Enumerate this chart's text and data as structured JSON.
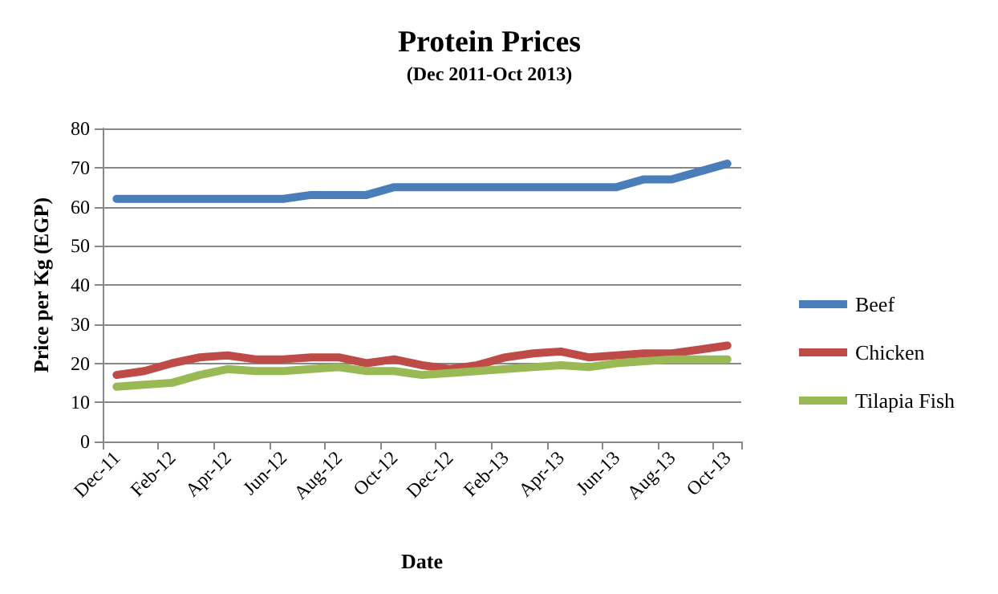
{
  "chart_data": {
    "type": "line",
    "title": "Protein Prices",
    "subtitle": "(Dec 2011-Oct 2013)",
    "xlabel": "Date",
    "ylabel": "Price per Kg (EGP)",
    "categories": [
      "Dec-11",
      null,
      "Feb-12",
      null,
      "Apr-12",
      null,
      "Jun-12",
      null,
      "Aug-12",
      null,
      "Oct-12",
      null,
      "Dec-12",
      null,
      "Feb-13",
      null,
      "Apr-13",
      null,
      "Jun-13",
      null,
      "Aug-13",
      null,
      "Oct-13"
    ],
    "series": [
      {
        "name": "Beef",
        "color": "#4a7ebb",
        "values": [
          62,
          62,
          62,
          62,
          62,
          62,
          62,
          63,
          63,
          63,
          65,
          65,
          65,
          65,
          65,
          65,
          65,
          65,
          65,
          67,
          67,
          69,
          71
        ]
      },
      {
        "name": "Chicken",
        "color": "#be4b48",
        "values": [
          17,
          18,
          20,
          21.5,
          22,
          21,
          21,
          21.5,
          21.5,
          20,
          21,
          19.5,
          18.5,
          19.5,
          21.5,
          22.5,
          23,
          21.5,
          22,
          22.5,
          22.5,
          23.5,
          24.5
        ]
      },
      {
        "name": "Tilapia Fish",
        "color": "#98b954",
        "values": [
          14,
          14.5,
          15,
          17,
          18.5,
          18,
          18,
          18.5,
          19,
          18,
          18,
          17,
          17.5,
          18,
          18.5,
          19,
          19.5,
          19,
          20,
          20.5,
          21,
          21,
          21
        ]
      }
    ],
    "ylim": [
      0,
      80
    ],
    "yticks": [
      0,
      10,
      20,
      30,
      40,
      50,
      60,
      70,
      80
    ],
    "grid": "y",
    "legend": "right",
    "marker": "none",
    "line_style": "solid"
  }
}
